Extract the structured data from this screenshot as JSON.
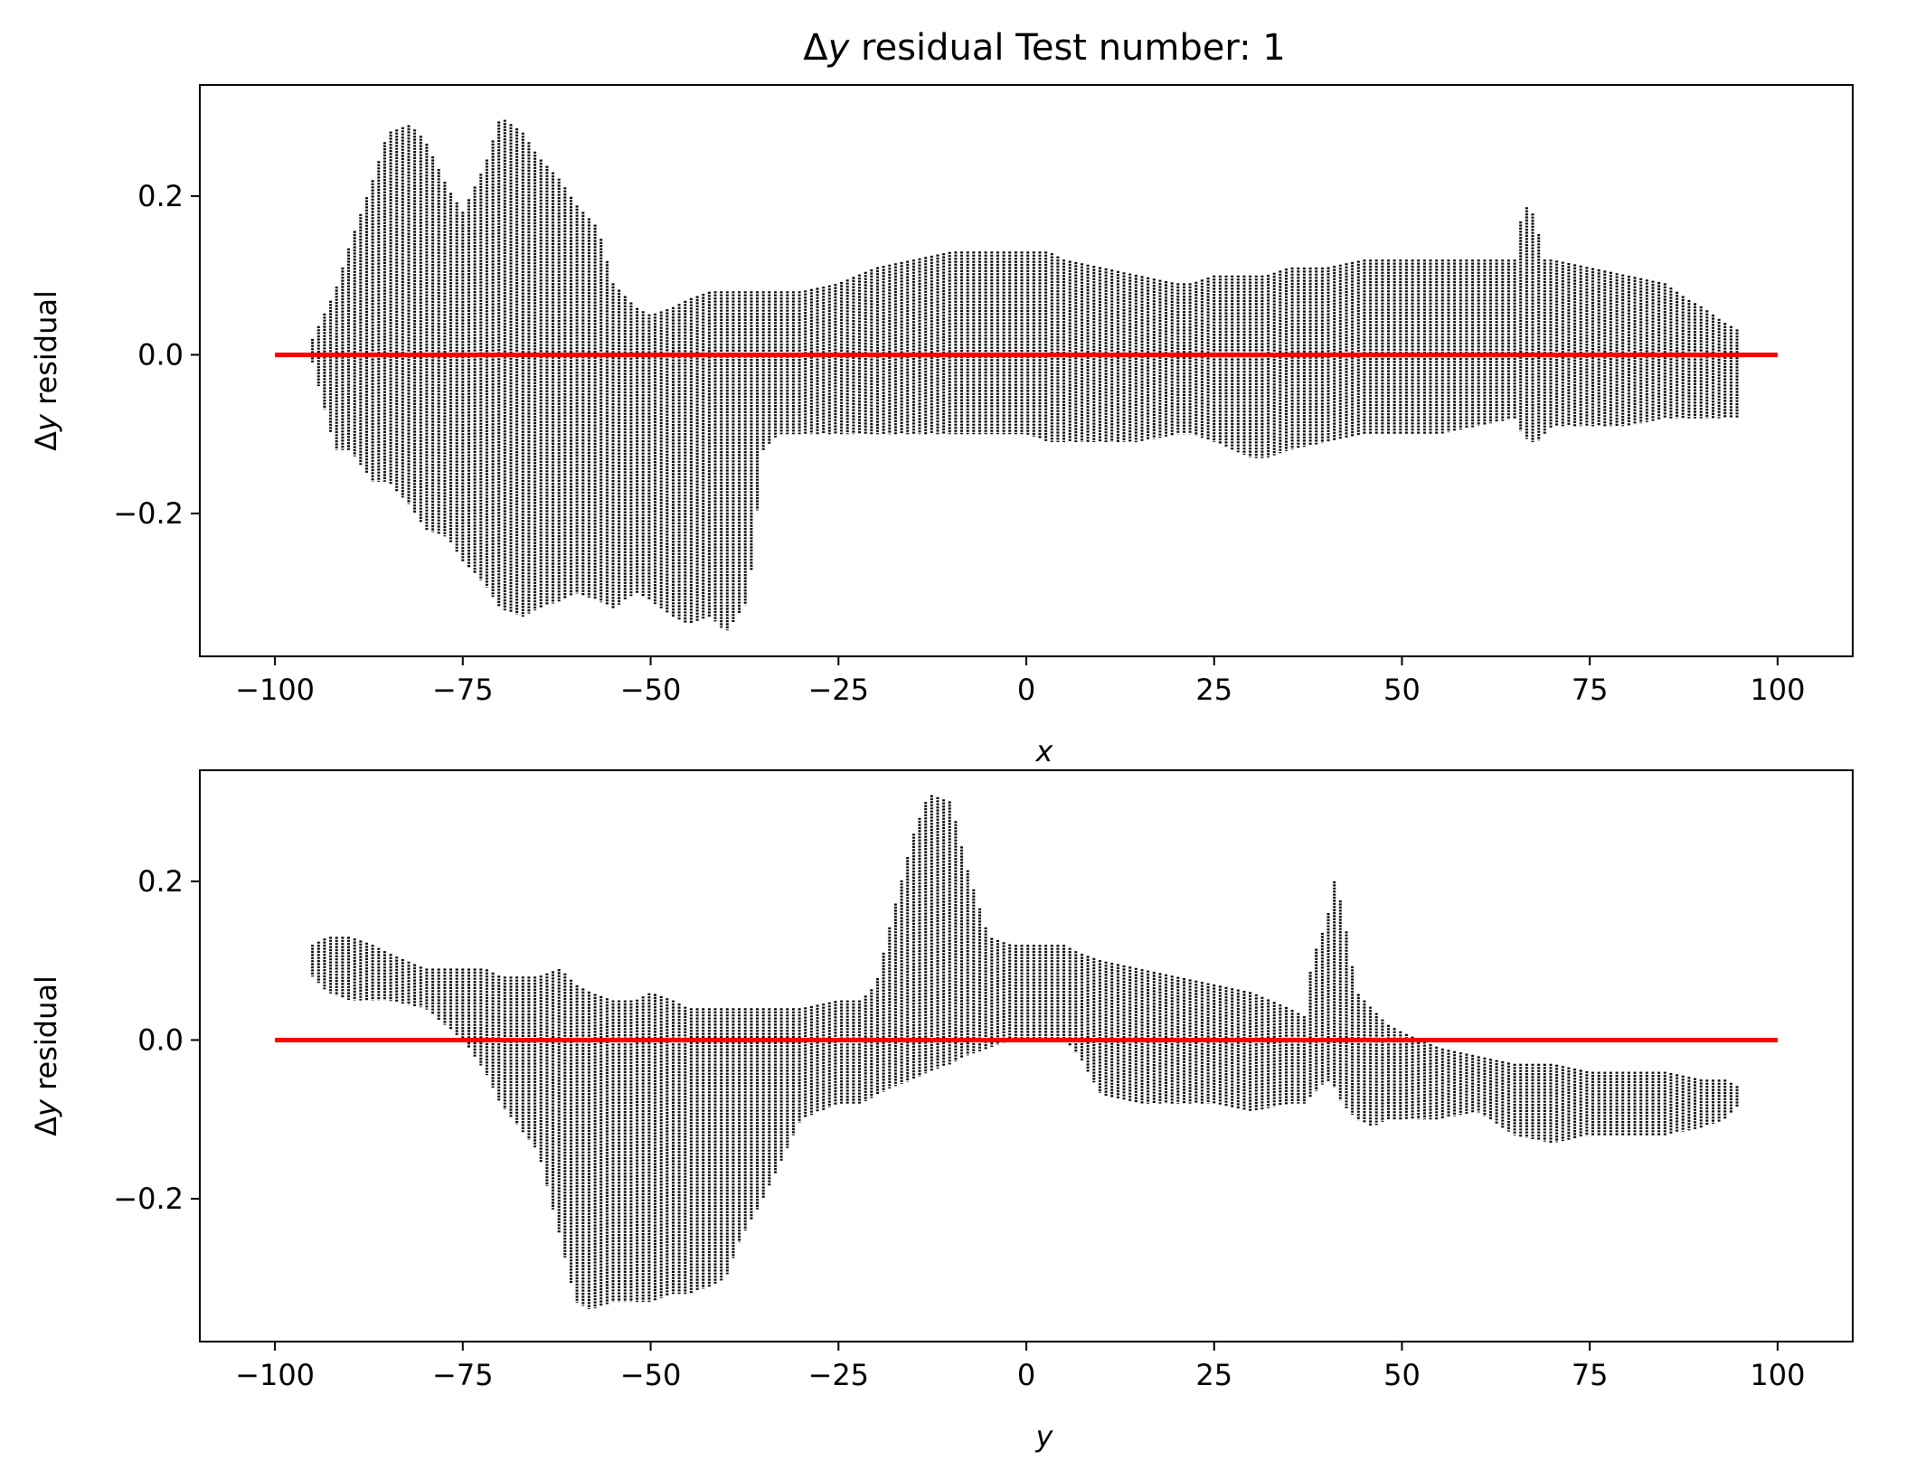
{
  "chart_data": [
    {
      "type": "scatter",
      "title_prefix": "Δ",
      "title_var": "y",
      "title_rest": " residual Test number: 1",
      "xlabel": "x",
      "ylabel_prefix": "Δ",
      "ylabel_var": "y",
      "ylabel_rest": " residual",
      "xlim": [
        -110,
        110
      ],
      "ylim": [
        -0.38,
        0.34
      ],
      "xticks": [
        -100,
        -75,
        -50,
        -25,
        0,
        25,
        50,
        75,
        100
      ],
      "xtick_labels": [
        "−100",
        "−75",
        "−50",
        "−25",
        "0",
        "25",
        "50",
        "75",
        "100"
      ],
      "yticks": [
        -0.2,
        0.0,
        0.2
      ],
      "ytick_labels": [
        "−0.2",
        "0.0",
        "0.2"
      ],
      "grid": false,
      "marker_color": "#000000",
      "reference_line": {
        "y": 0.0,
        "x_range": [
          -100,
          100
        ],
        "color": "#ff0000"
      },
      "envelope": {
        "x": [
          -95,
          -92,
          -90,
          -87,
          -85,
          -82,
          -80,
          -77,
          -75,
          -72,
          -70,
          -67,
          -65,
          -62,
          -60,
          -57,
          -55,
          -52,
          -50,
          -47,
          -45,
          -42,
          -40,
          -37,
          -35,
          -33,
          -30,
          -25,
          -20,
          -15,
          -10,
          -5,
          0,
          3,
          5,
          10,
          15,
          20,
          22,
          25,
          30,
          32,
          35,
          40,
          45,
          50,
          55,
          60,
          65,
          66,
          67,
          68,
          69,
          70,
          75,
          80,
          85,
          88,
          90,
          93,
          95
        ],
        "upper": [
          0.02,
          0.08,
          0.14,
          0.22,
          0.28,
          0.29,
          0.27,
          0.21,
          0.18,
          0.24,
          0.3,
          0.28,
          0.25,
          0.22,
          0.19,
          0.16,
          0.09,
          0.06,
          0.05,
          0.06,
          0.07,
          0.08,
          0.08,
          0.08,
          0.08,
          0.08,
          0.08,
          0.09,
          0.11,
          0.12,
          0.13,
          0.13,
          0.13,
          0.13,
          0.12,
          0.11,
          0.1,
          0.09,
          0.09,
          0.1,
          0.1,
          0.1,
          0.11,
          0.11,
          0.12,
          0.12,
          0.12,
          0.12,
          0.12,
          0.18,
          0.19,
          0.16,
          0.12,
          0.12,
          0.11,
          0.1,
          0.09,
          0.07,
          0.06,
          0.04,
          0.03
        ],
        "lower": [
          -0.01,
          -0.12,
          -0.12,
          -0.16,
          -0.16,
          -0.19,
          -0.22,
          -0.23,
          -0.26,
          -0.29,
          -0.32,
          -0.33,
          -0.32,
          -0.31,
          -0.3,
          -0.31,
          -0.32,
          -0.3,
          -0.31,
          -0.33,
          -0.34,
          -0.33,
          -0.35,
          -0.31,
          -0.12,
          -0.1,
          -0.1,
          -0.1,
          -0.1,
          -0.1,
          -0.1,
          -0.1,
          -0.1,
          -0.11,
          -0.11,
          -0.11,
          -0.11,
          -0.1,
          -0.1,
          -0.11,
          -0.13,
          -0.13,
          -0.12,
          -0.11,
          -0.1,
          -0.1,
          -0.1,
          -0.09,
          -0.08,
          -0.1,
          -0.11,
          -0.11,
          -0.1,
          -0.09,
          -0.09,
          -0.09,
          -0.08,
          -0.08,
          -0.08,
          -0.08,
          -0.08
        ]
      }
    },
    {
      "type": "scatter",
      "xlabel": "y",
      "ylabel_prefix": "Δ",
      "ylabel_var": "y",
      "ylabel_rest": " residual",
      "xlim": [
        -110,
        110
      ],
      "ylim": [
        -0.38,
        0.34
      ],
      "xticks": [
        -100,
        -75,
        -50,
        -25,
        0,
        25,
        50,
        75,
        100
      ],
      "xtick_labels": [
        "−100",
        "−75",
        "−50",
        "−25",
        "0",
        "25",
        "50",
        "75",
        "100"
      ],
      "yticks": [
        -0.2,
        0.0,
        0.2
      ],
      "ytick_labels": [
        "−0.2",
        "0.0",
        "0.2"
      ],
      "grid": false,
      "marker_color": "#000000",
      "reference_line": {
        "y": 0.0,
        "x_range": [
          -100,
          100
        ],
        "color": "#ff0000"
      },
      "envelope": {
        "x": [
          -95,
          -93,
          -90,
          -87,
          -85,
          -80,
          -75,
          -72,
          -70,
          -65,
          -62,
          -60,
          -58,
          -55,
          -52,
          -50,
          -47,
          -45,
          -42,
          -40,
          -38,
          -35,
          -30,
          -25,
          -22,
          -20,
          -18,
          -15,
          -13,
          -10,
          -8,
          -5,
          -2,
          0,
          3,
          5,
          7,
          10,
          15,
          20,
          25,
          30,
          35,
          37,
          38,
          40,
          41,
          42,
          44,
          46,
          48,
          50,
          55,
          60,
          65,
          70,
          75,
          80,
          85,
          90,
          93,
          95
        ],
        "upper": [
          0.12,
          0.13,
          0.13,
          0.12,
          0.11,
          0.09,
          0.09,
          0.09,
          0.08,
          0.08,
          0.09,
          0.07,
          0.06,
          0.05,
          0.05,
          0.06,
          0.05,
          0.04,
          0.04,
          0.04,
          0.04,
          0.04,
          0.04,
          0.05,
          0.05,
          0.07,
          0.15,
          0.26,
          0.31,
          0.3,
          0.22,
          0.13,
          0.12,
          0.12,
          0.12,
          0.12,
          0.11,
          0.1,
          0.09,
          0.08,
          0.07,
          0.06,
          0.04,
          0.03,
          0.1,
          0.15,
          0.2,
          0.17,
          0.06,
          0.04,
          0.02,
          0.01,
          -0.01,
          -0.02,
          -0.03,
          -0.03,
          -0.04,
          -0.04,
          -0.04,
          -0.05,
          -0.05,
          -0.06
        ],
        "lower": [
          0.08,
          0.06,
          0.05,
          0.05,
          0.05,
          0.04,
          0.0,
          -0.04,
          -0.08,
          -0.14,
          -0.25,
          -0.33,
          -0.34,
          -0.33,
          -0.33,
          -0.33,
          -0.32,
          -0.32,
          -0.31,
          -0.3,
          -0.25,
          -0.2,
          -0.1,
          -0.08,
          -0.08,
          -0.07,
          -0.06,
          -0.05,
          -0.04,
          -0.03,
          -0.02,
          -0.01,
          0.0,
          0.0,
          0.0,
          0.0,
          -0.02,
          -0.07,
          -0.08,
          -0.08,
          -0.08,
          -0.09,
          -0.08,
          -0.08,
          -0.07,
          -0.05,
          -0.06,
          -0.08,
          -0.1,
          -0.11,
          -0.1,
          -0.1,
          -0.1,
          -0.09,
          -0.12,
          -0.13,
          -0.12,
          -0.12,
          -0.12,
          -0.11,
          -0.1,
          -0.08
        ]
      }
    }
  ]
}
